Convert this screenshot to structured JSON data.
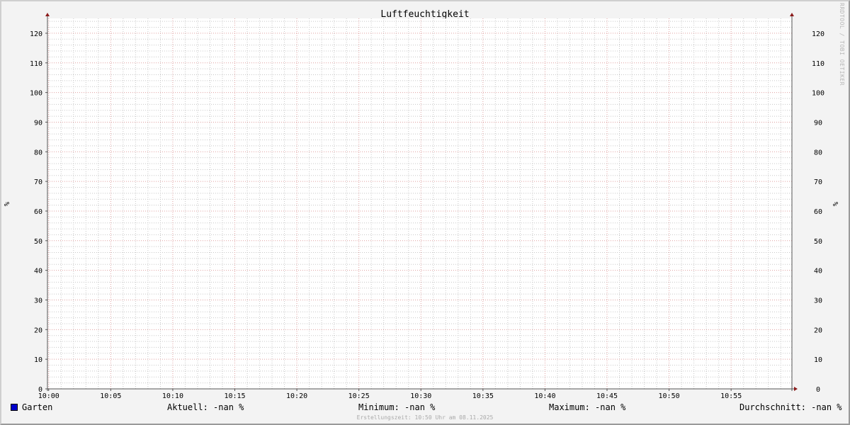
{
  "chart_data": {
    "type": "line",
    "title": "Luftfeuchtigkeit",
    "ylabel": "%",
    "ylabel_right": "%",
    "ylim": [
      0,
      125
    ],
    "yticks": [
      0,
      10,
      20,
      30,
      40,
      50,
      60,
      70,
      80,
      90,
      100,
      110,
      120
    ],
    "y_minor_step": 2,
    "xlim": [
      "09:59",
      "10:59"
    ],
    "xticks": [
      "10:00",
      "10:05",
      "10:10",
      "10:15",
      "10:20",
      "10:25",
      "10:30",
      "10:35",
      "10:40",
      "10:45",
      "10:50",
      "10:55"
    ],
    "x_minor_step_minutes": 1,
    "grid": true,
    "series": [
      {
        "name": "Garten",
        "color": "#0000cc",
        "values": []
      }
    ],
    "colors": {
      "major_grid": "#e0a0a0",
      "minor_grid": "#c8c8c8",
      "axis": "#555555",
      "arrow": "#8b1a1a",
      "background": "#ffffff"
    }
  },
  "legend": {
    "series_name": "Garten",
    "current": "Aktuell: -nan %",
    "minimum": "Minimum: -nan %",
    "maximum": "Maximum: -nan %",
    "average": "Durchschnitt: -nan %"
  },
  "footer": "Erstellungszeit: 10:50 Uhr am 08.11.2025",
  "watermark": "RRDTOOL / TOBI OETIKER"
}
